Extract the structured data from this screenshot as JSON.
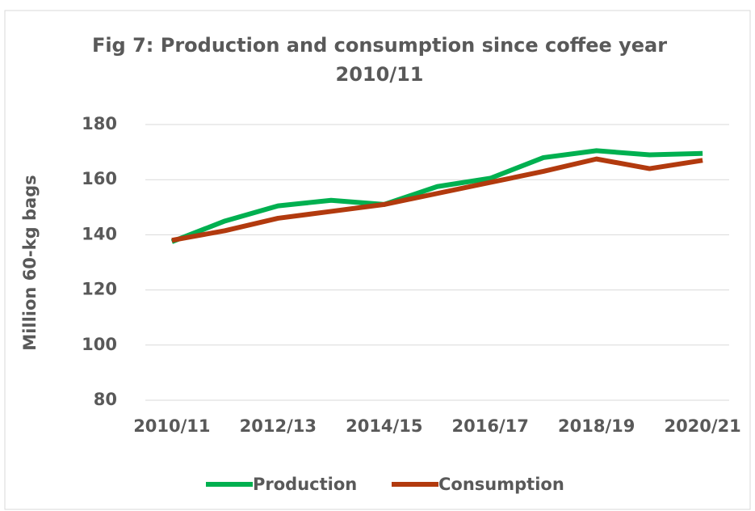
{
  "chart_data": {
    "type": "line",
    "title": "Fig 7: Production and consumption since coffee year 2010/11",
    "y_label": "Million 60-kg bags",
    "categories": [
      "2010/11",
      null,
      "2012/13",
      null,
      "2014/15",
      null,
      "2016/17",
      null,
      "2018/19",
      null,
      "2020/21"
    ],
    "series": [
      {
        "name": "Production",
        "color": "#00b050",
        "values": [
          137.5,
          145,
          150.5,
          152.5,
          151,
          157.5,
          160.5,
          168,
          170.5,
          169,
          169.5
        ]
      },
      {
        "name": "Consumption",
        "color": "#b23a0e",
        "values": [
          138,
          141.5,
          146,
          148.5,
          151,
          155,
          159,
          163,
          167.5,
          164,
          167
        ]
      }
    ],
    "ylim": [
      80,
      180
    ],
    "yticks": [
      80,
      100,
      120,
      140,
      160,
      180
    ],
    "grid": true,
    "legend": "bottom"
  }
}
